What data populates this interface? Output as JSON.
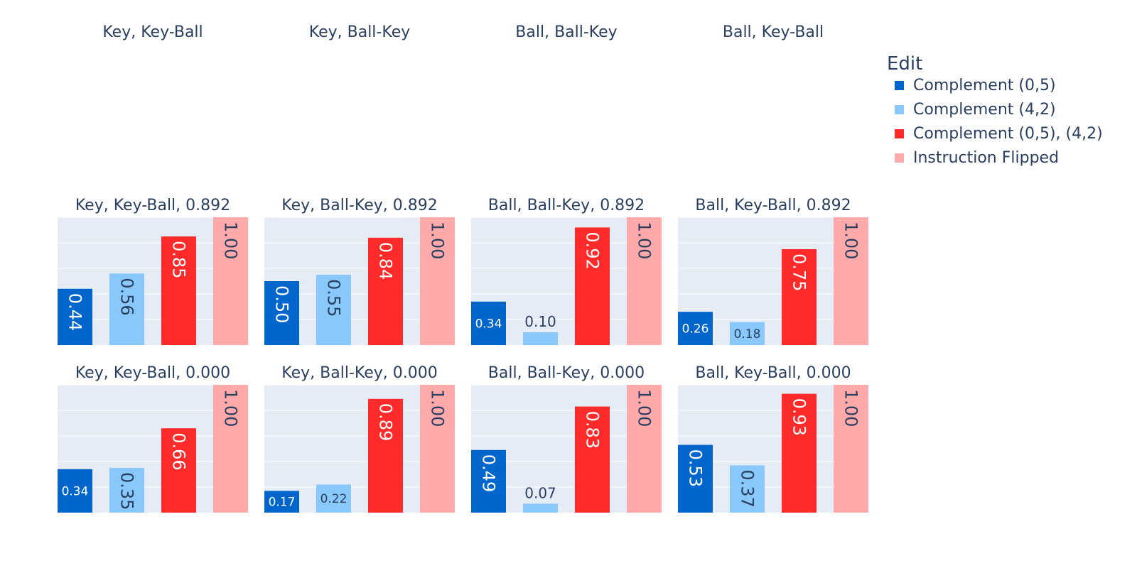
{
  "column_titles": [
    "Key, Key-Ball",
    "Key, Ball-Key",
    "Ball, Ball-Key",
    "Ball, Key-Ball"
  ],
  "legend": {
    "title": "Edit",
    "entries": [
      {
        "name": "Complement (0,5)",
        "color": "#0066cc"
      },
      {
        "name": "Complement (4,2)",
        "color": "#88c8fa"
      },
      {
        "name": "Complement (0,5), (4,2)",
        "color": "#ff2b2b"
      },
      {
        "name": "Instruction Flipped",
        "color": "#ffaaaa"
      }
    ]
  },
  "colors": {
    "plot_bg": "#e5ecf6",
    "grid": "#ffffff",
    "text": "#2a3f5f"
  },
  "chart_data": {
    "type": "bar",
    "categories": [
      "Complement (0,5)",
      "Complement (4,2)",
      "Complement (0,5), (4,2)",
      "Instruction Flipped"
    ],
    "ylim": [
      0,
      1
    ],
    "grid": true,
    "legend_position": "top-right",
    "panels": [
      {
        "title": "Key, Key-Ball, 0.892",
        "values": [
          0.44,
          0.56,
          0.85,
          1.0
        ],
        "labels": [
          "0.44",
          "0.56",
          "0.85",
          "1.00"
        ]
      },
      {
        "title": "Key, Ball-Key, 0.892",
        "values": [
          0.5,
          0.55,
          0.84,
          1.0
        ],
        "labels": [
          "0.50",
          "0.55",
          "0.84",
          "1.00"
        ]
      },
      {
        "title": "Ball, Ball-Key, 0.892",
        "values": [
          0.34,
          0.1,
          0.92,
          1.0
        ],
        "labels": [
          "0.34",
          "0.10",
          "0.92",
          "1.00"
        ]
      },
      {
        "title": "Ball, Key-Ball, 0.892",
        "values": [
          0.26,
          0.18,
          0.75,
          1.0
        ],
        "labels": [
          "0.26",
          "0.18",
          "0.75",
          "1.00"
        ]
      },
      {
        "title": "Key, Key-Ball, 0.000",
        "values": [
          0.34,
          0.35,
          0.66,
          1.0
        ],
        "labels": [
          "0.34",
          "0.35",
          "0.66",
          "1.00"
        ]
      },
      {
        "title": "Key, Ball-Key, 0.000",
        "values": [
          0.17,
          0.22,
          0.89,
          1.0
        ],
        "labels": [
          "0.17",
          "0.22",
          "0.89",
          "1.00"
        ]
      },
      {
        "title": "Ball, Ball-Key, 0.000",
        "values": [
          0.49,
          0.07,
          0.83,
          1.0
        ],
        "labels": [
          "0.49",
          "0.07",
          "0.83",
          "1.00"
        ]
      },
      {
        "title": "Ball, Key-Ball, 0.000",
        "values": [
          0.53,
          0.37,
          0.93,
          1.0
        ],
        "labels": [
          "0.53",
          "0.37",
          "0.93",
          "1.00"
        ]
      }
    ]
  }
}
